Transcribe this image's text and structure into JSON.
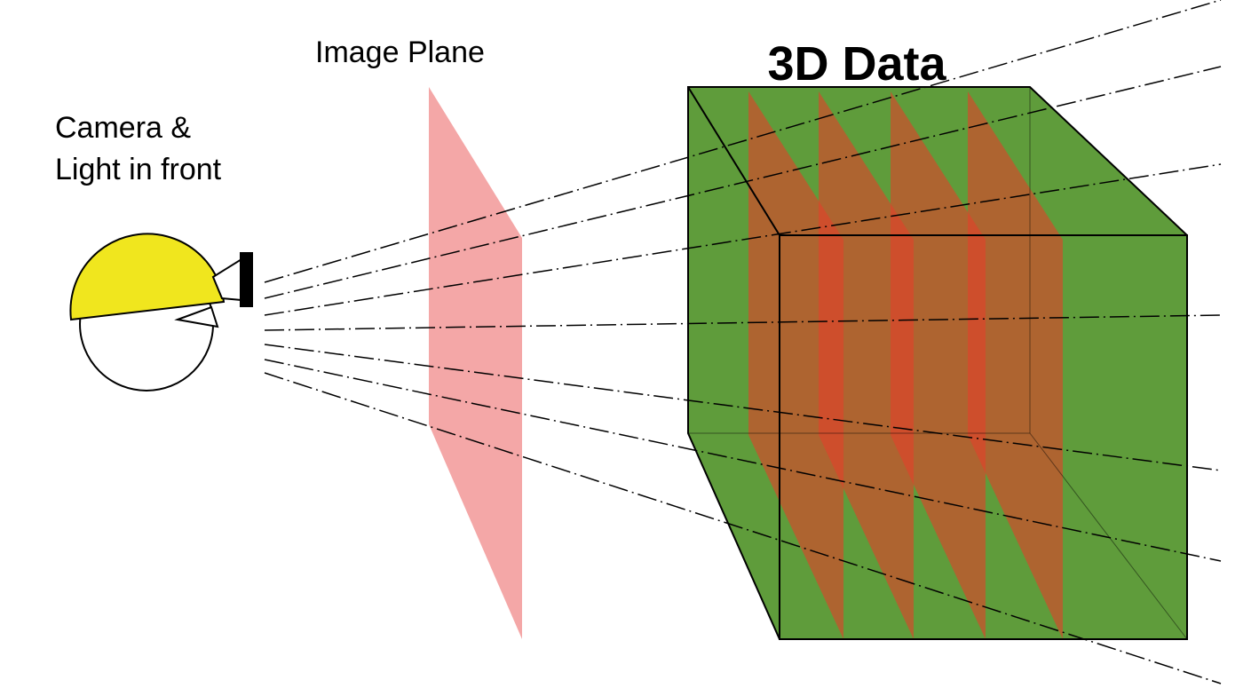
{
  "labels": {
    "camera": [
      "Camera &",
      "Light in front"
    ],
    "image_plane": "Image Plane",
    "data": "3D Data"
  }
}
